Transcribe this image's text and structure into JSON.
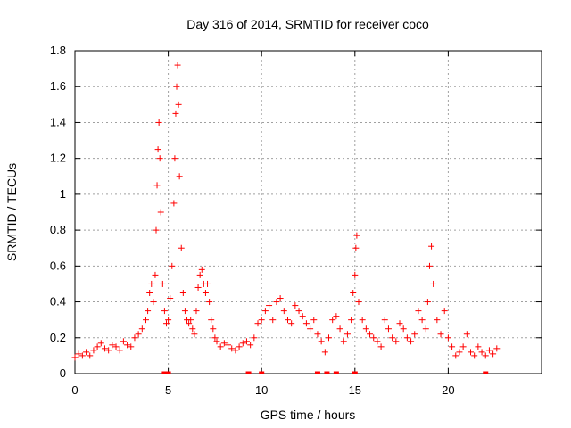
{
  "chart_data": {
    "type": "scatter",
    "title": "Day 316 of 2014, SRMTID for receiver coco",
    "xlabel": "GPS time / hours",
    "ylabel": "SRMTID / TECUs",
    "xlim": [
      0,
      25
    ],
    "ylim": [
      0,
      1.8
    ],
    "xticks": [
      0,
      5,
      10,
      15,
      20
    ],
    "xtick_labels": [
      "0",
      "5",
      "10",
      "15",
      "20"
    ],
    "yticks": [
      0,
      0.2,
      0.4,
      0.6,
      0.8,
      1.0,
      1.2,
      1.4,
      1.6,
      1.8
    ],
    "ytick_labels": [
      "0",
      "0.2",
      "0.4",
      "0.6",
      "0.8",
      "1",
      "1.2",
      "1.4",
      "1.6",
      "1.8"
    ],
    "grid": true,
    "marker": "+",
    "series": [
      {
        "name": "SRMTID",
        "color": "#ff0000",
        "x": [
          0.0,
          0.2,
          0.4,
          0.6,
          0.8,
          1.0,
          1.2,
          1.4,
          1.6,
          1.8,
          2.0,
          2.2,
          2.4,
          2.6,
          2.8,
          3.0,
          3.2,
          3.4,
          3.6,
          3.8,
          3.9,
          4.0,
          4.1,
          4.2,
          4.3,
          4.35,
          4.4,
          4.45,
          4.5,
          4.55,
          4.6,
          4.7,
          4.8,
          4.9,
          5.0,
          5.1,
          5.2,
          5.3,
          5.35,
          5.4,
          5.45,
          5.5,
          5.55,
          5.6,
          5.7,
          5.8,
          5.9,
          6.0,
          6.1,
          6.2,
          6.3,
          6.4,
          6.5,
          6.6,
          6.7,
          6.8,
          6.9,
          7.0,
          7.1,
          7.2,
          7.3,
          7.4,
          7.5,
          7.6,
          7.8,
          8.0,
          8.2,
          8.4,
          8.6,
          8.8,
          9.0,
          9.2,
          9.4,
          9.6,
          9.8,
          10.0,
          10.2,
          10.4,
          10.6,
          10.8,
          11.0,
          11.2,
          11.4,
          11.6,
          11.8,
          12.0,
          12.2,
          12.4,
          12.6,
          12.8,
          13.0,
          13.2,
          13.4,
          13.6,
          13.8,
          14.0,
          14.2,
          14.4,
          14.6,
          14.8,
          14.9,
          15.0,
          15.05,
          15.1,
          15.2,
          15.4,
          15.6,
          15.8,
          16.0,
          16.2,
          16.4,
          16.6,
          16.8,
          17.0,
          17.2,
          17.4,
          17.6,
          17.8,
          18.0,
          18.2,
          18.4,
          18.6,
          18.8,
          18.9,
          19.0,
          19.1,
          19.2,
          19.4,
          19.6,
          19.8,
          20.0,
          20.2,
          20.4,
          20.6,
          20.8,
          21.0,
          21.2,
          21.4,
          21.6,
          21.8,
          22.0,
          22.2,
          22.4,
          22.6
        ],
        "y": [
          0.09,
          0.11,
          0.1,
          0.12,
          0.1,
          0.13,
          0.15,
          0.17,
          0.14,
          0.13,
          0.16,
          0.15,
          0.13,
          0.18,
          0.16,
          0.15,
          0.2,
          0.22,
          0.25,
          0.3,
          0.35,
          0.45,
          0.5,
          0.4,
          0.55,
          0.8,
          1.05,
          1.25,
          1.4,
          1.2,
          0.9,
          0.5,
          0.35,
          0.28,
          0.3,
          0.42,
          0.6,
          0.95,
          1.2,
          1.45,
          1.6,
          1.72,
          1.5,
          1.1,
          0.7,
          0.45,
          0.35,
          0.3,
          0.28,
          0.3,
          0.25,
          0.22,
          0.35,
          0.48,
          0.55,
          0.58,
          0.5,
          0.45,
          0.5,
          0.4,
          0.3,
          0.25,
          0.2,
          0.18,
          0.15,
          0.17,
          0.16,
          0.14,
          0.13,
          0.15,
          0.17,
          0.18,
          0.16,
          0.2,
          0.28,
          0.3,
          0.35,
          0.38,
          0.3,
          0.4,
          0.42,
          0.35,
          0.3,
          0.28,
          0.38,
          0.35,
          0.32,
          0.28,
          0.25,
          0.3,
          0.22,
          0.18,
          0.12,
          0.2,
          0.3,
          0.32,
          0.25,
          0.18,
          0.22,
          0.3,
          0.45,
          0.55,
          0.7,
          0.77,
          0.4,
          0.3,
          0.25,
          0.22,
          0.2,
          0.18,
          0.15,
          0.3,
          0.25,
          0.2,
          0.18,
          0.28,
          0.25,
          0.2,
          0.18,
          0.22,
          0.35,
          0.3,
          0.25,
          0.4,
          0.6,
          0.71,
          0.5,
          0.3,
          0.22,
          0.35,
          0.2,
          0.15,
          0.1,
          0.12,
          0.15,
          0.22,
          0.12,
          0.1,
          0.15,
          0.12,
          0.1,
          0.13,
          0.11,
          0.14
        ]
      }
    ],
    "zero_markers_x": [
      4.8,
      5.0,
      9.3,
      10.0,
      13.0,
      13.5,
      14.0,
      15.0,
      22.0
    ]
  }
}
